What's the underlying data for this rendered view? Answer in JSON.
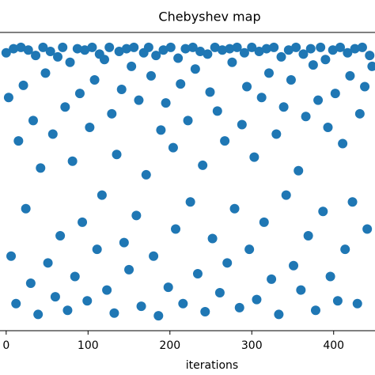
{
  "chart_data": {
    "type": "scatter",
    "title": "Chebyshev map",
    "x_label": "iterations",
    "x": [
      0,
      3,
      6,
      9,
      12,
      15,
      18,
      21,
      24,
      27,
      30,
      33,
      36,
      39,
      42,
      45,
      48,
      51,
      54,
      57,
      60,
      63,
      66,
      69,
      72,
      75,
      78,
      81,
      84,
      87,
      90,
      93,
      96,
      99,
      102,
      105,
      108,
      111,
      114,
      117,
      120,
      123,
      126,
      129,
      132,
      135,
      138,
      141,
      144,
      147,
      150,
      153,
      156,
      159,
      162,
      165,
      168,
      171,
      174,
      177,
      180,
      183,
      186,
      189,
      192,
      195,
      198,
      201,
      204,
      207,
      210,
      213,
      216,
      219,
      222,
      225,
      228,
      231,
      234,
      237,
      240,
      243,
      246,
      249,
      252,
      255,
      258,
      261,
      264,
      267,
      270,
      273,
      276,
      279,
      282,
      285,
      288,
      291,
      294,
      297,
      300,
      303,
      306,
      309,
      312,
      315,
      318,
      321,
      324,
      327,
      330,
      333,
      336,
      339,
      342,
      345,
      348,
      351,
      354,
      357,
      360,
      363,
      366,
      369,
      372,
      375,
      378,
      381,
      384,
      387,
      390,
      393,
      396,
      399,
      402,
      405,
      408,
      411,
      414,
      417,
      420,
      423,
      426,
      429,
      432,
      435,
      438,
      441,
      444,
      447
    ],
    "values": [
      0.95,
      0.62,
      -0.55,
      0.98,
      -0.9,
      0.3,
      0.99,
      0.71,
      -0.2,
      0.97,
      -0.75,
      0.45,
      0.93,
      -0.98,
      0.1,
      0.99,
      0.8,
      -0.6,
      0.96,
      0.35,
      -0.85,
      0.92,
      -0.4,
      0.99,
      0.55,
      -0.95,
      0.88,
      0.15,
      -0.7,
      0.98,
      0.65,
      -0.3,
      0.97,
      -0.88,
      0.4,
      0.99,
      0.75,
      -0.5,
      0.94,
      -0.1,
      0.9,
      -0.8,
      0.99,
      0.5,
      -0.97,
      0.2,
      0.96,
      0.68,
      -0.45,
      0.98,
      -0.65,
      0.85,
      0.99,
      -0.25,
      0.6,
      -0.92,
      0.95,
      0.05,
      0.99,
      0.78,
      -0.55,
      0.93,
      -0.99,
      0.38,
      0.97,
      0.58,
      -0.78,
      0.99,
      0.25,
      -0.35,
      0.91,
      0.72,
      -0.9,
      0.98,
      0.45,
      -0.15,
      0.99,
      0.83,
      -0.68,
      0.96,
      0.12,
      -0.96,
      0.94,
      0.66,
      -0.42,
      0.99,
      0.52,
      -0.82,
      0.97,
      0.3,
      -0.6,
      0.98,
      0.88,
      -0.2,
      0.99,
      -0.93,
      0.42,
      0.95,
      0.7,
      -0.5,
      0.99,
      0.18,
      -0.87,
      0.96,
      0.62,
      -0.3,
      0.98,
      0.8,
      -0.72,
      0.99,
      0.35,
      -0.98,
      0.92,
      0.55,
      -0.1,
      0.97,
      0.75,
      -0.62,
      0.99,
      0.08,
      -0.8,
      0.94,
      0.48,
      -0.4,
      0.98,
      0.86,
      -0.95,
      0.6,
      0.99,
      -0.22,
      0.9,
      0.4,
      -0.7,
      0.97,
      0.65,
      -0.88,
      0.99,
      0.28,
      -0.5,
      0.95,
      0.78,
      -0.15,
      0.98,
      -0.9,
      0.5,
      0.99,
      0.7,
      -0.35,
      0.93,
      0.85
    ],
    "color": "#1f77b4",
    "xlim": [
      -24.95,
      523.95
    ],
    "xticks": [
      0,
      100,
      200,
      300,
      400
    ],
    "ylim": [
      -1.1,
      1.1
    ],
    "grid": false
  }
}
